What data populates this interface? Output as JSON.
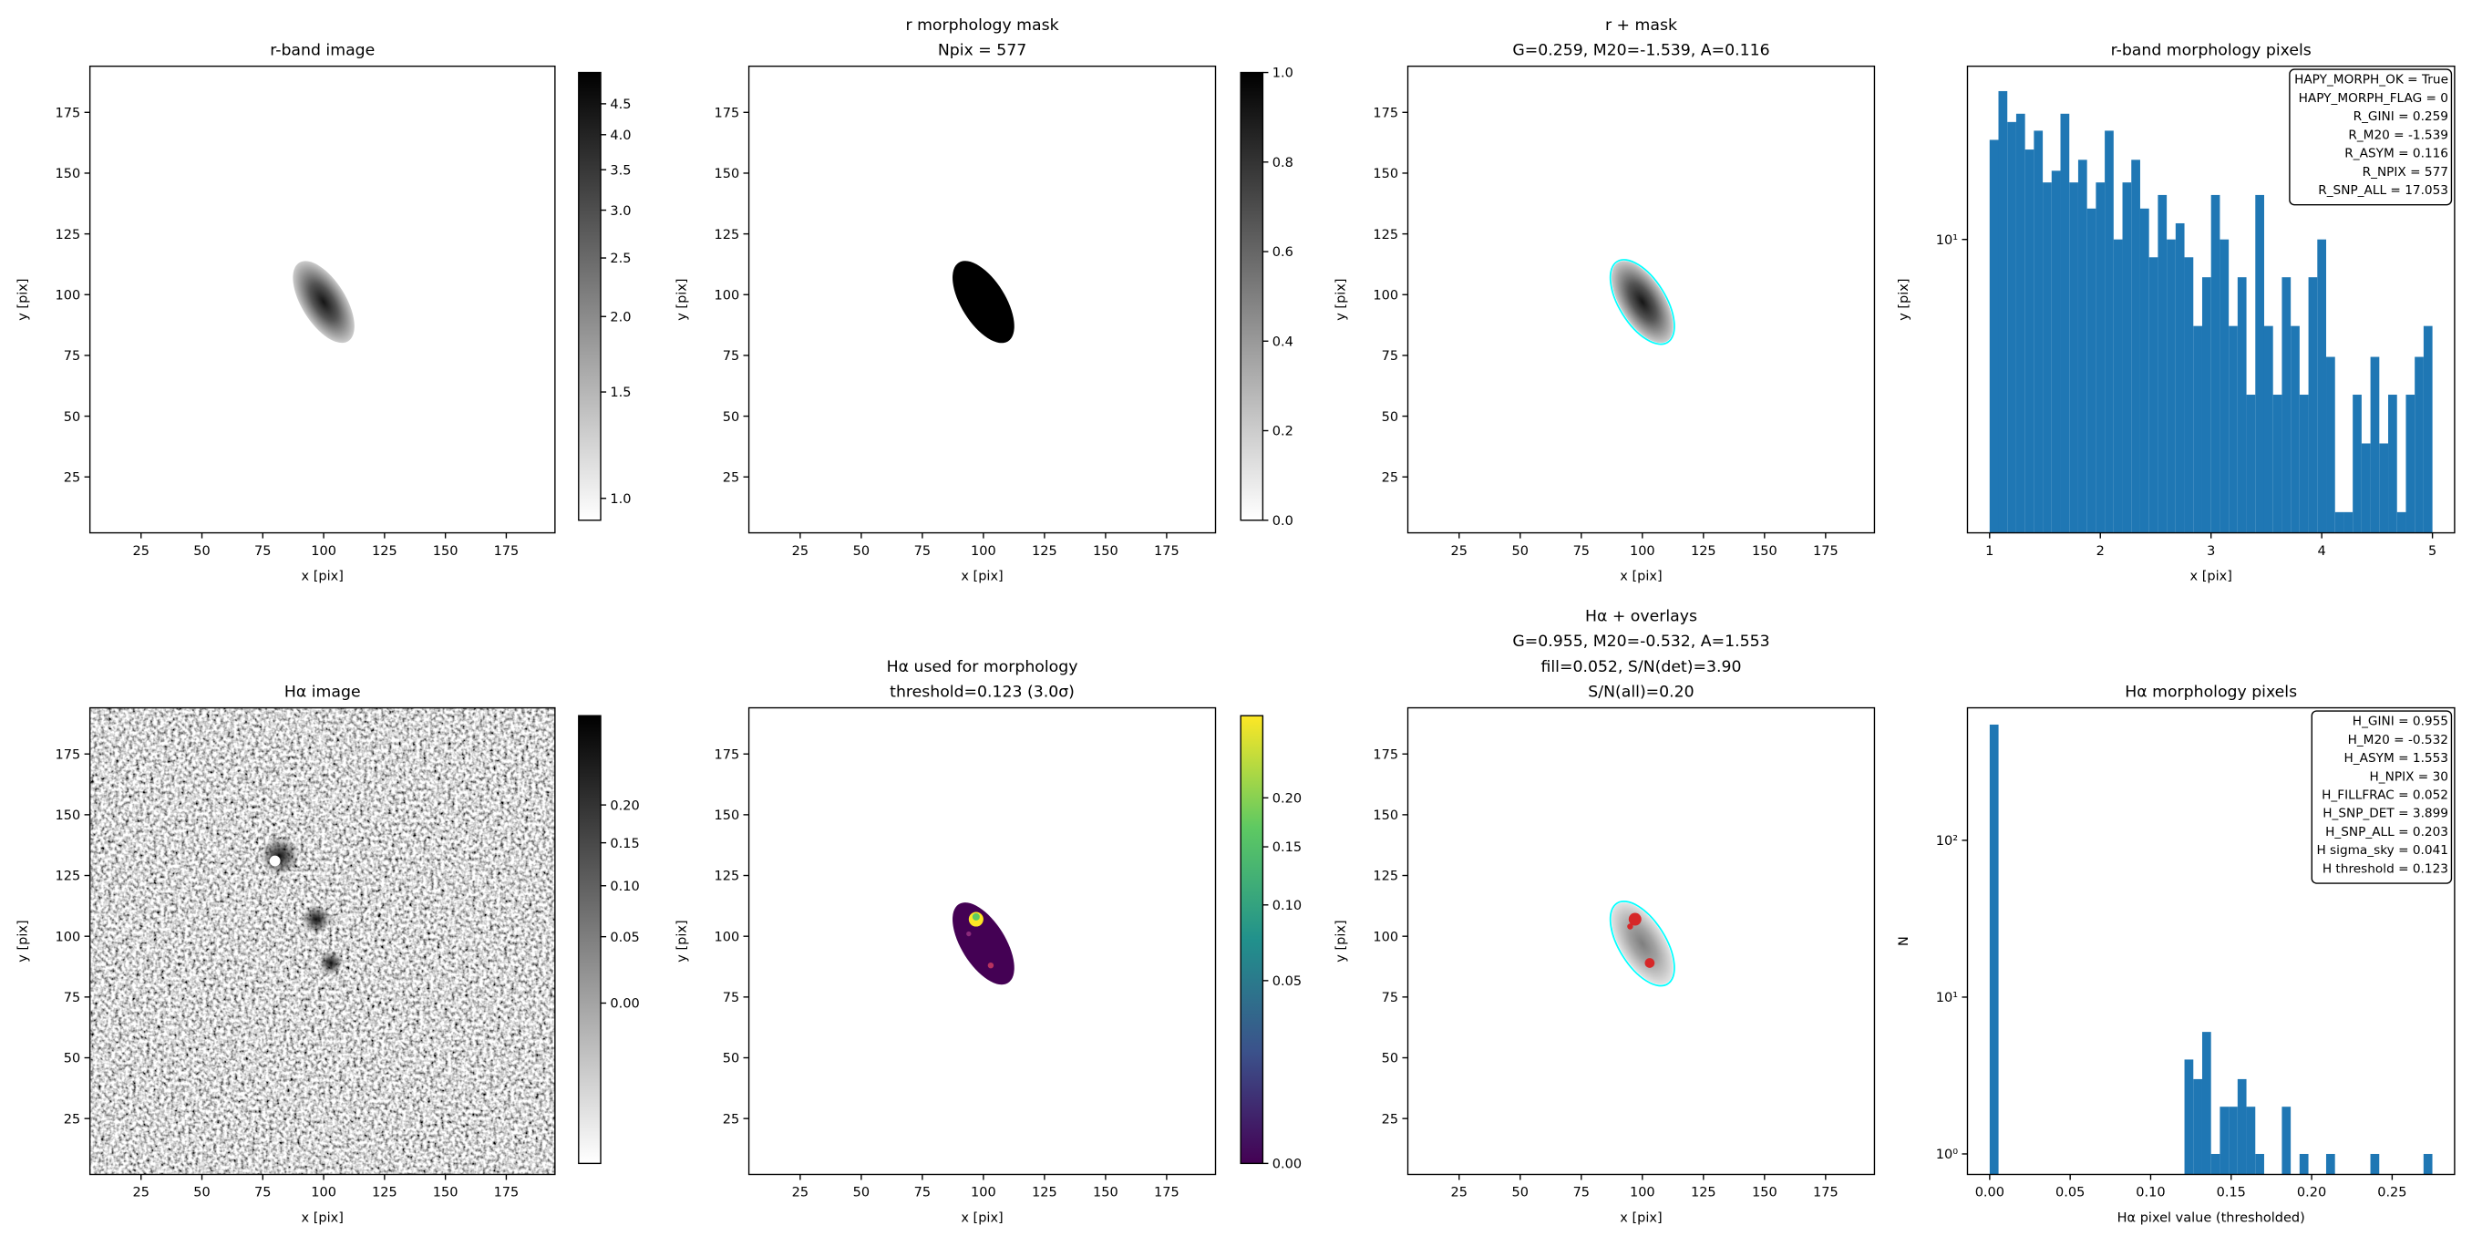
{
  "chart_data": [
    {
      "type": "image",
      "title": [
        "r-band image"
      ],
      "xlabel": "x [pix]",
      "ylabel": "y [pix]",
      "xlim": [
        4,
        195
      ],
      "ylim": [
        2,
        194
      ],
      "xticks": [
        25,
        50,
        75,
        100,
        125,
        150,
        175
      ],
      "yticks": [
        25,
        50,
        75,
        100,
        125,
        150,
        175
      ],
      "colorbar": {
        "cmap": "gray_r",
        "scale": "log",
        "clim": [
          0.92,
          5.07
        ],
        "ticks": [
          {
            "value": 1,
            "label": "1.0"
          },
          1.5,
          {
            "value": 2,
            "label": "2.0"
          },
          2.5,
          {
            "value": 3,
            "label": "3.0"
          },
          3.5,
          {
            "value": 4,
            "label": "4.0"
          },
          4.5
        ]
      }
    },
    {
      "type": "image",
      "title": [
        "r morphology mask",
        "Npix = 577"
      ],
      "xlabel": "x [pix]",
      "ylabel": "y [pix]",
      "xlim": [
        4,
        195
      ],
      "ylim": [
        2,
        194
      ],
      "xticks": [
        25,
        50,
        75,
        100,
        125,
        150,
        175
      ],
      "yticks": [
        25,
        50,
        75,
        100,
        125,
        150,
        175
      ],
      "colorbar": {
        "cmap": "gray_r",
        "scale": "linear",
        "clim": [
          0,
          1
        ],
        "ticks": [
          {
            "value": 0,
            "label": "0.0"
          },
          {
            "value": 0.2,
            "label": "0.2"
          },
          {
            "value": 0.4,
            "label": "0.4"
          },
          {
            "value": 0.6,
            "label": "0.6"
          },
          {
            "value": 0.8,
            "label": "0.8"
          },
          {
            "value": 1,
            "label": "1.0"
          }
        ]
      }
    },
    {
      "type": "image",
      "title": [
        "r + mask",
        "G=0.259, M20=-1.539, A=0.116"
      ],
      "xlabel": "x [pix]",
      "ylabel": "y [pix]",
      "xlim": [
        4,
        195
      ],
      "ylim": [
        2,
        194
      ],
      "xticks": [
        25,
        50,
        75,
        100,
        125,
        150,
        175
      ],
      "yticks": [
        25,
        50,
        75,
        100,
        125,
        150,
        175
      ],
      "overlay_color": "#00ffff"
    },
    {
      "type": "histogram",
      "title": [
        "r-band morphology pixels"
      ],
      "xlabel": "x [pix]",
      "ylabel": "y [pix]",
      "color": "#1f77b4",
      "log_y": true,
      "xlim": [
        0.8,
        5.2
      ],
      "ylim": [
        1.77,
        27.8
      ],
      "xticks": [
        1,
        2,
        3,
        4,
        5
      ],
      "yticks": [
        {
          "value": 10,
          "label": "10¹"
        }
      ],
      "bins": [
        1,
        1.08,
        1.16,
        1.24,
        1.32,
        1.4,
        1.48,
        1.56,
        1.64,
        1.72,
        1.8,
        1.88,
        1.96,
        2.04,
        2.12,
        2.2,
        2.28,
        2.36,
        2.44,
        2.52,
        2.6,
        2.68,
        2.76,
        2.84,
        2.92,
        3,
        3.08,
        3.16,
        3.24,
        3.32,
        3.4,
        3.48,
        3.56,
        3.64,
        3.72,
        3.8,
        3.88,
        3.96,
        4.04,
        4.12,
        4.2,
        4.28,
        4.36,
        4.44,
        4.52,
        4.6,
        4.68,
        4.76,
        4.84,
        4.92,
        5
      ],
      "values": [
        18,
        24,
        20,
        21,
        17,
        19,
        14,
        15,
        21,
        14,
        16,
        12,
        14,
        19,
        10,
        14,
        16,
        12,
        9,
        13,
        10,
        11,
        9,
        6,
        8,
        13,
        10,
        6,
        8,
        4,
        13,
        6,
        4,
        8,
        6,
        4,
        8,
        10,
        5,
        2,
        2,
        4,
        3,
        5,
        3,
        4,
        2,
        4,
        5,
        6
      ],
      "annotations": [
        "HAPY_MORPH_OK = True",
        "HAPY_MORPH_FLAG = 0",
        "R_GINI = 0.259",
        "R_M20 = -1.539",
        "R_ASYM = 0.116",
        "R_NPIX = 577",
        "R_SNP_ALL = 17.053"
      ]
    },
    {
      "type": "image",
      "title": [
        "Hα image"
      ],
      "xlabel": "x [pix]",
      "ylabel": "y [pix]",
      "xlim": [
        4,
        195
      ],
      "ylim": [
        2,
        194
      ],
      "xticks": [
        25,
        50,
        75,
        100,
        125,
        150,
        175
      ],
      "yticks": [
        25,
        50,
        75,
        100,
        125,
        150,
        175
      ],
      "colorbar": {
        "cmap": "gray_r",
        "scale": "sqrt",
        "clim": [
          -0.05,
          0.34
        ],
        "ticks": [
          {
            "value": 0,
            "label": "0.00"
          },
          0.05,
          {
            "value": 0.1,
            "label": "0.10"
          },
          0.15,
          {
            "value": 0.2,
            "label": "0.20"
          }
        ]
      }
    },
    {
      "type": "image",
      "title": [
        "Hα used for morphology",
        "threshold=0.123 (3.0σ)"
      ],
      "xlabel": "x [pix]",
      "ylabel": "y [pix]",
      "xlim": [
        4,
        195
      ],
      "ylim": [
        2,
        194
      ],
      "xticks": [
        25,
        50,
        75,
        100,
        125,
        150,
        175
      ],
      "yticks": [
        25,
        50,
        75,
        100,
        125,
        150,
        175
      ],
      "colorbar": {
        "cmap": "viridis",
        "scale": "sqrt",
        "clim": [
          0,
          0.3
        ],
        "ticks": [
          {
            "value": 0,
            "label": "0.00"
          },
          0.05,
          {
            "value": 0.1,
            "label": "0.10"
          },
          0.15,
          {
            "value": 0.2,
            "label": "0.20"
          }
        ]
      }
    },
    {
      "type": "image",
      "title": [
        "Hα + overlays",
        "G=0.955, M20=-0.532, A=1.553",
        "fill=0.052, S/N(det)=3.90",
        "S/N(all)=0.20"
      ],
      "xlabel": "x [pix]",
      "ylabel": "y [pix]",
      "xlim": [
        4,
        195
      ],
      "ylim": [
        2,
        194
      ],
      "xticks": [
        25,
        50,
        75,
        100,
        125,
        150,
        175
      ],
      "yticks": [
        25,
        50,
        75,
        100,
        125,
        150,
        175
      ],
      "overlay_color": "#00ffff"
    },
    {
      "type": "histogram",
      "title": [
        "Hα morphology pixels"
      ],
      "xlabel": "Hα pixel value (thresholded)",
      "ylabel": "N",
      "color": "#1f77b4",
      "log_y": true,
      "xlim": [
        -0.0138,
        0.2888
      ],
      "ylim": [
        0.74,
        700
      ],
      "xticks": [
        {
          "value": 0,
          "label": "0.00"
        },
        0.05,
        {
          "value": 0.1,
          "label": "0.10"
        },
        0.15,
        {
          "value": 0.2,
          "label": "0.20"
        },
        0.25
      ],
      "yticks": [
        {
          "value": 1,
          "label": "10⁰"
        },
        {
          "value": 10,
          "label": "10¹"
        },
        {
          "value": 100,
          "label": "10²"
        }
      ],
      "bins": [
        0,
        0.0055,
        0.011,
        0.0165,
        0.022,
        0.0275,
        0.033,
        0.0385,
        0.044,
        0.0495,
        0.055,
        0.0605,
        0.066,
        0.0715,
        0.077,
        0.0825,
        0.088,
        0.0935,
        0.099,
        0.1045,
        0.11,
        0.1155,
        0.121,
        0.1265,
        0.132,
        0.1375,
        0.143,
        0.1485,
        0.154,
        0.1595,
        0.165,
        0.1705,
        0.176,
        0.1815,
        0.187,
        0.1925,
        0.198,
        0.2035,
        0.209,
        0.2145,
        0.22,
        0.2255,
        0.231,
        0.2365,
        0.242,
        0.2475,
        0.253,
        0.2585,
        0.264,
        0.2695,
        0.275
      ],
      "values": [
        547,
        0,
        0,
        0,
        0,
        0,
        0,
        0,
        0,
        0,
        0,
        0,
        0,
        0,
        0,
        0,
        0,
        0,
        0,
        0,
        0,
        0,
        4,
        3,
        6,
        1,
        2,
        2,
        3,
        2,
        1,
        0,
        0,
        2,
        0,
        1,
        0,
        0,
        1,
        0,
        0,
        0,
        0,
        1,
        0,
        0,
        0,
        0,
        0,
        1
      ],
      "annotations": [
        "H_GINI = 0.955",
        "H_M20 = -0.532",
        "H_ASYM = 1.553",
        "H_NPIX = 30",
        "H_FILLFRAC = 0.052",
        "H_SNP_DET = 3.899",
        "H_SNP_ALL = 0.203",
        "H sigma_sky = 0.041",
        "H threshold = 0.123"
      ]
    }
  ]
}
